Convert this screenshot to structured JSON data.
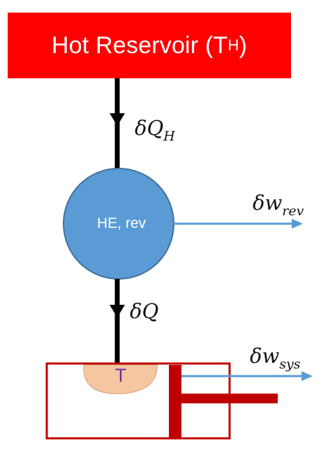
{
  "reservoir": {
    "label": "Hot Reservoir (T",
    "subscript": "H",
    "close": ")"
  },
  "heat_in": {
    "symbol": "δQ",
    "subscript": "H"
  },
  "engine": {
    "label": "HE, rev"
  },
  "work_rev": {
    "symbol": "δw",
    "subscript": "rev"
  },
  "heat_out": {
    "symbol": "δQ"
  },
  "system": {
    "label": "T"
  },
  "work_sys": {
    "symbol": "δw",
    "subscript": "sys"
  },
  "colors": {
    "reservoir": "#ff0000",
    "engine": "#5b9bd5",
    "engine_border": "#41719c",
    "work_arrow": "#5b9bd5",
    "heat_arrow": "#000000",
    "cylinder": "#c00000",
    "system_blob": "#f4c7a1",
    "system_text": "#7030a0"
  }
}
